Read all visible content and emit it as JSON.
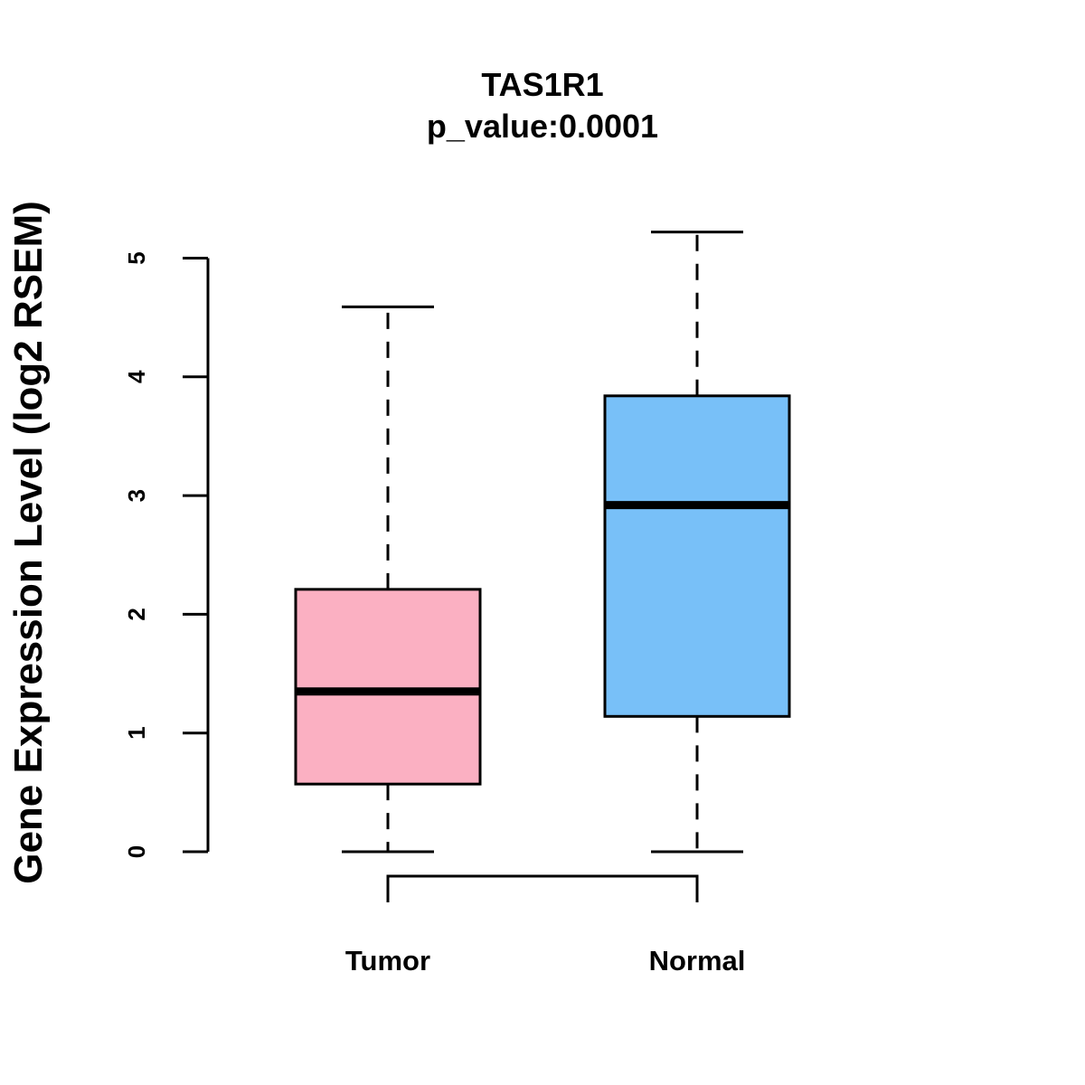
{
  "chart_data": {
    "type": "boxplot",
    "title": "TAS1R1",
    "subtitle": "p_value:0.0001",
    "xlabel": "",
    "ylabel": "Gene Expression Level (log2 RSEM)",
    "ylim": [
      0,
      5.22
    ],
    "yticks": [
      0,
      1,
      2,
      3,
      4,
      5
    ],
    "categories": [
      "Tumor",
      "Normal"
    ],
    "series": [
      {
        "name": "Tumor",
        "color": "#FBB0C2",
        "min": 0.0,
        "q1": 0.57,
        "median": 1.35,
        "q3": 2.21,
        "max": 4.59
      },
      {
        "name": "Normal",
        "color": "#78C0F8",
        "min": 0.0,
        "q1": 1.14,
        "median": 2.92,
        "q3": 3.84,
        "max": 5.22
      }
    ],
    "comparison_bracket": {
      "from": "Tumor",
      "to": "Normal"
    }
  }
}
